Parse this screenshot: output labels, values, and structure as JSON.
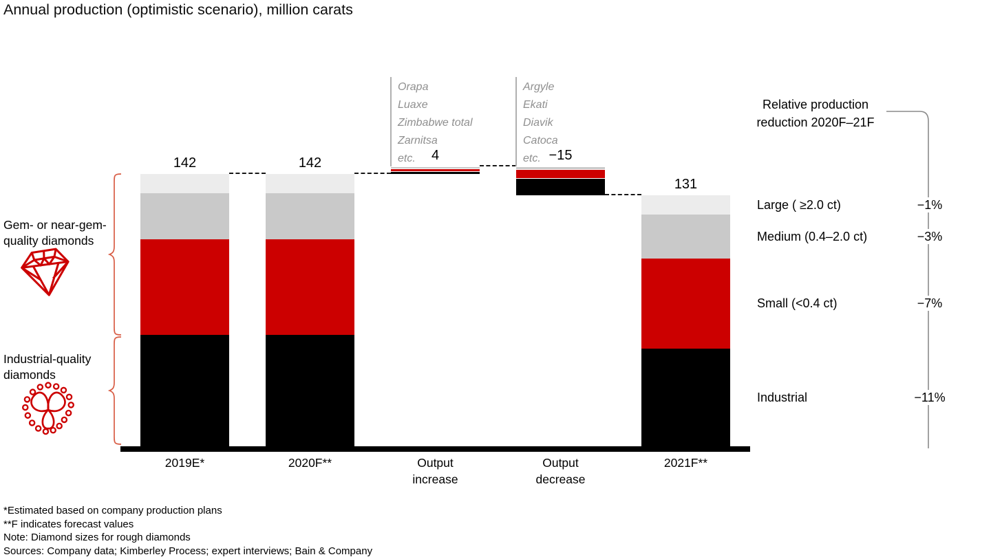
{
  "title": "Annual production (optimistic scenario), million carats",
  "colors": {
    "industrial": "#000000",
    "small": "#cc0000",
    "medium": "#c9c9c9",
    "large": "#ececec",
    "accent_red": "#cc0000",
    "brace_red": "#d85c44",
    "annotation_gray": "#8f8f8f",
    "line_gray": "#8a8a8a"
  },
  "chart_data": {
    "type": "bar",
    "subtype": "waterfall_stacked",
    "title": "Annual production (optimistic scenario), million carats",
    "unit": "million carats",
    "ylim": [
      0,
      160
    ],
    "grid": false,
    "series_colors": {
      "industrial": "#000000",
      "small": "#cc0000",
      "medium": "#c9c9c9",
      "large": "#ececec"
    },
    "segment_order_bottom_up": [
      "industrial",
      "small",
      "medium",
      "large"
    ],
    "bars": [
      {
        "label": "2019E*",
        "axis_lines": [
          "2019E*"
        ],
        "value_label": "142",
        "total": 142,
        "bottom": 0,
        "floating": false,
        "segments": {
          "industrial": 58,
          "small": 50,
          "medium": 24,
          "large": 10
        }
      },
      {
        "label": "2020F**",
        "axis_lines": [
          "2020F**"
        ],
        "value_label": "142",
        "total": 142,
        "bottom": 0,
        "floating": false,
        "segments": {
          "industrial": 58,
          "small": 50,
          "medium": 24,
          "large": 10
        }
      },
      {
        "label": "Output increase",
        "axis_lines": [
          "Output",
          "increase"
        ],
        "value_label": "4",
        "total": 4,
        "bottom": 142,
        "floating": true,
        "segments": {
          "industrial": 1.5,
          "small": 1.5,
          "medium": 1.0
        }
      },
      {
        "label": "Output decrease",
        "axis_lines": [
          "Output",
          "decrease"
        ],
        "value_label": "−15",
        "total": -15,
        "bottom": 131,
        "floating": true,
        "segments": {
          "industrial": 9,
          "small": 4.5,
          "medium": 1.5
        }
      },
      {
        "label": "2021F**",
        "axis_lines": [
          "2021F**"
        ],
        "value_label": "131",
        "total": 131,
        "bottom": 0,
        "floating": false,
        "segments": {
          "industrial": 51,
          "small": 47,
          "medium": 23,
          "large": 10
        }
      }
    ],
    "connectors": [
      {
        "from_bar": 0,
        "to_bar": 1,
        "level": 142
      },
      {
        "from_bar": 1,
        "to_bar": 2,
        "level": 142
      },
      {
        "from_bar": 2,
        "to_bar": 3,
        "level": 146
      },
      {
        "from_bar": 3,
        "to_bar": 4,
        "level": 131
      }
    ]
  },
  "annotations": [
    {
      "bar_index": 2,
      "lines": [
        "Orapa",
        "Luaxe",
        "Zimbabwe total",
        "Zarnitsa",
        "etc."
      ]
    },
    {
      "bar_index": 3,
      "lines": [
        "Argyle",
        "Ekati",
        "Diavik",
        "Catoca",
        "etc."
      ]
    }
  ],
  "left_labels": {
    "gem": {
      "line1": "Gem- or near-gem-",
      "line2": "quality diamonds"
    },
    "industrial": {
      "line1": "Industrial-quality",
      "line2": "diamonds"
    }
  },
  "right_panel": {
    "header_line1": "Relative production",
    "header_line2": "reduction 2020F–21F",
    "rows": [
      {
        "segment": "large",
        "label": "Large ( ≥2.0 ct)",
        "value": "−1%"
      },
      {
        "segment": "medium",
        "label": "Medium (0.4–2.0 ct)",
        "value": "−3%"
      },
      {
        "segment": "small",
        "label": "Small (<0.4 ct)",
        "value": "−7%"
      },
      {
        "segment": "industrial",
        "label": "Industrial",
        "value": "−11%"
      }
    ]
  },
  "footnotes": [
    "*Estimated based on company production plans",
    "**F indicates forecast values",
    "Note: Diamond sizes for rough diamonds",
    "Sources: Company data; Kimberley Process; expert interviews; Bain & Company"
  ]
}
